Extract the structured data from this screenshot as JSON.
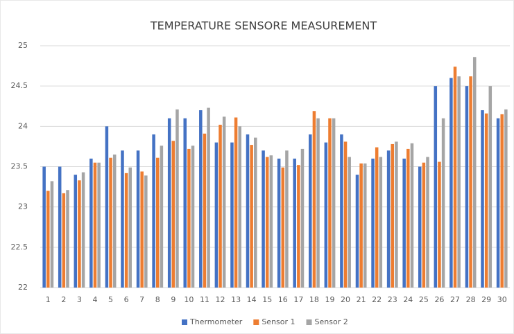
{
  "chart_data": {
    "type": "bar",
    "title": "TEMPERATURE SENSORE MEASUREMENT",
    "categories": [
      "1",
      "2",
      "3",
      "4",
      "5",
      "6",
      "7",
      "8",
      "9",
      "10",
      "11",
      "12",
      "13",
      "14",
      "15",
      "16",
      "17",
      "18",
      "19",
      "20",
      "21",
      "22",
      "23",
      "24",
      "25",
      "26",
      "27",
      "28",
      "29",
      "30"
    ],
    "series": [
      {
        "name": "Thermometer",
        "color": "#4472c4",
        "values": [
          23.5,
          23.5,
          23.4,
          23.6,
          24.0,
          23.7,
          23.7,
          23.9,
          24.1,
          24.1,
          24.2,
          23.8,
          23.8,
          23.9,
          23.7,
          23.6,
          23.6,
          23.9,
          23.8,
          23.9,
          23.4,
          23.6,
          23.7,
          23.6,
          23.5,
          24.5,
          24.6,
          24.5,
          24.2,
          24.1
        ]
      },
      {
        "name": "Sensor 1",
        "color": "#ed7d31",
        "values": [
          23.2,
          23.17,
          23.33,
          23.55,
          23.61,
          23.42,
          23.44,
          23.61,
          23.82,
          23.72,
          23.91,
          24.02,
          24.11,
          23.77,
          23.62,
          23.49,
          23.52,
          24.19,
          24.1,
          23.81,
          23.54,
          23.74,
          23.78,
          23.72,
          23.55,
          23.56,
          24.74,
          24.62,
          24.16,
          24.15
        ]
      },
      {
        "name": "Sensor 2",
        "color": "#a5a5a5",
        "values": [
          23.32,
          23.21,
          23.43,
          23.55,
          23.65,
          23.49,
          23.39,
          23.76,
          24.21,
          23.76,
          24.23,
          24.12,
          24.0,
          23.86,
          23.64,
          23.7,
          23.72,
          24.1,
          24.1,
          23.62,
          23.54,
          23.62,
          23.81,
          23.79,
          23.62,
          24.1,
          24.62,
          24.86,
          24.5,
          24.21
        ]
      }
    ],
    "ylim": [
      22,
      25
    ],
    "yticks": [
      22,
      22.5,
      23,
      23.5,
      24,
      24.5,
      25
    ],
    "grid": true,
    "legend": "bottom"
  }
}
